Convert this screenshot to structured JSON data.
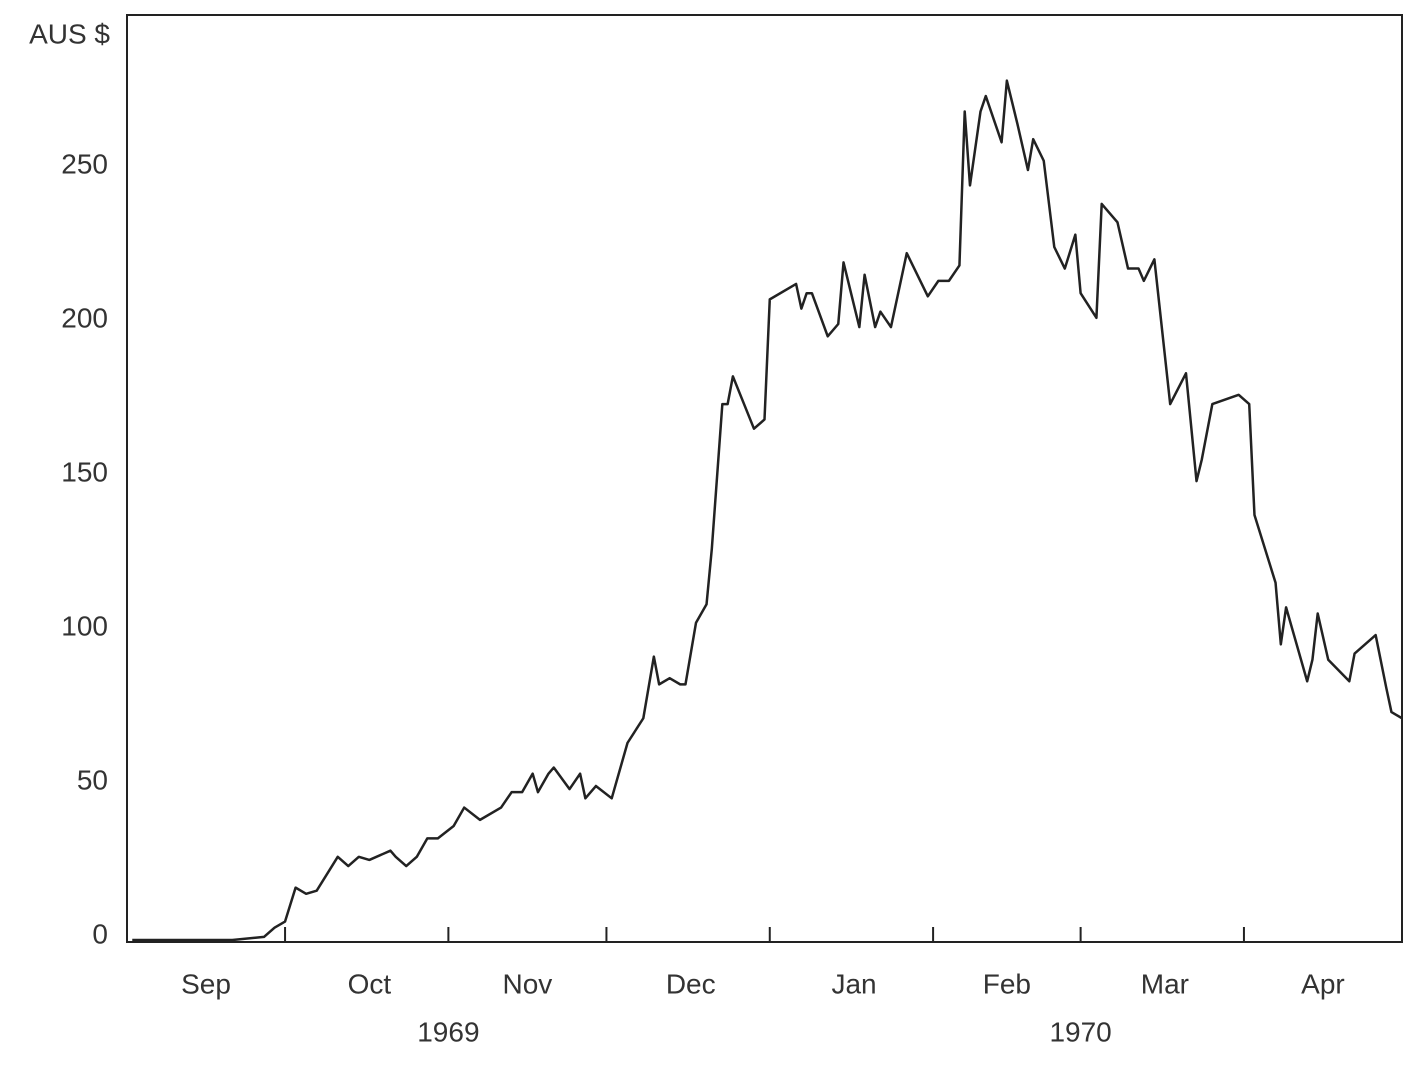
{
  "chart_data": {
    "type": "line",
    "y_label": "AUS $",
    "x": [
      1,
      10,
      20,
      26,
      28,
      30,
      32,
      34,
      36,
      40,
      42,
      44,
      46,
      50,
      51,
      53,
      55,
      57,
      59,
      62,
      64,
      67,
      71,
      73,
      75,
      77,
      78,
      80,
      81,
      84,
      86,
      87,
      89,
      92,
      95,
      98,
      100,
      101,
      103,
      105,
      106,
      108,
      110,
      111,
      113,
      114,
      115,
      119,
      121,
      122,
      127,
      128,
      129,
      130,
      133,
      135,
      136,
      139,
      140,
      142,
      143,
      145,
      148,
      152,
      154,
      156,
      158,
      159,
      160,
      162,
      163,
      166,
      167,
      169,
      171,
      172,
      174,
      176,
      178,
      180,
      181,
      184,
      185,
      188,
      190,
      192,
      193,
      195,
      198,
      201,
      203,
      204,
      206,
      211,
      213,
      214,
      218,
      219,
      220,
      224,
      225,
      226,
      228,
      232,
      233,
      237,
      239,
      240,
      242
    ],
    "series": [
      {
        "color": "#222222",
        "values": [
          0,
          0,
          0,
          1,
          4,
          6,
          17,
          15,
          16,
          27,
          24,
          27,
          26,
          29,
          27,
          24,
          27,
          33,
          33,
          37,
          43,
          39,
          43,
          48,
          48,
          54,
          48,
          54,
          56,
          49,
          54,
          46,
          50,
          46,
          64,
          72,
          92,
          83,
          85,
          83,
          83,
          103,
          109,
          127,
          174,
          174,
          183,
          166,
          169,
          208,
          213,
          205,
          210,
          210,
          196,
          200,
          220,
          199,
          216,
          199,
          204,
          199,
          223,
          209,
          214,
          214,
          219,
          269,
          245,
          269,
          274,
          259,
          279,
          265,
          250,
          260,
          253,
          225,
          218,
          229,
          210,
          202,
          239,
          233,
          218,
          218,
          214,
          221,
          174,
          184,
          149,
          156,
          174,
          177,
          174,
          138,
          116,
          96,
          108,
          84,
          91,
          106,
          91,
          84,
          93,
          99,
          82,
          74,
          72
        ]
      }
    ],
    "xlim": [
      0,
      242
    ],
    "xticks": [
      30,
      61,
      91,
      122,
      153,
      181,
      212
    ],
    "month_labels": [
      {
        "value": 15,
        "label": "Sep"
      },
      {
        "value": 46,
        "label": "Oct"
      },
      {
        "value": 76,
        "label": "Nov"
      },
      {
        "value": 107,
        "label": "Dec"
      },
      {
        "value": 138,
        "label": "Jan"
      },
      {
        "value": 167,
        "label": "Feb"
      },
      {
        "value": 197,
        "label": "Mar"
      },
      {
        "value": 227,
        "label": "Apr"
      }
    ],
    "year_labels": [
      {
        "value": 61,
        "label": "1969"
      },
      {
        "value": 181,
        "label": "1970"
      }
    ],
    "ylim": [
      0,
      300
    ],
    "yticks": [
      0,
      50,
      100,
      150,
      200,
      250
    ],
    "grid": false
  }
}
